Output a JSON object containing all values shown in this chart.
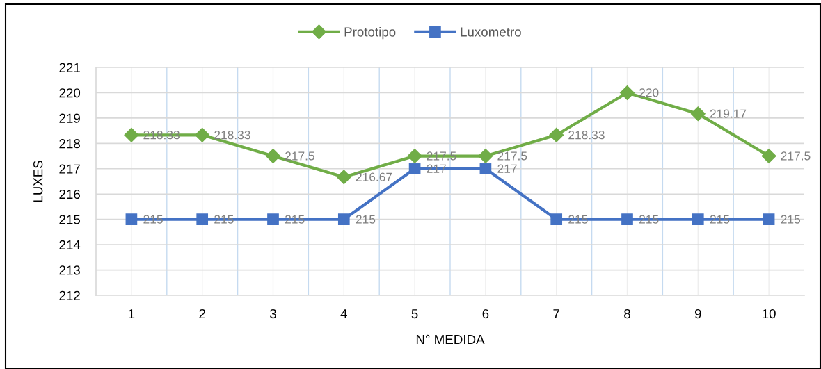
{
  "chart_data": {
    "type": "line",
    "xlabel": "N° MEDIDA",
    "ylabel": "LUXES",
    "categories": [
      "1",
      "2",
      "3",
      "4",
      "5",
      "6",
      "7",
      "8",
      "9",
      "10"
    ],
    "series": [
      {
        "name": "Prototipo",
        "color": "#70ad47",
        "marker": "diamond",
        "values": [
          218.33,
          218.33,
          217.5,
          216.67,
          217.5,
          217.5,
          218.33,
          220,
          219.17,
          217.5
        ]
      },
      {
        "name": "Luxometro",
        "color": "#4472c4",
        "marker": "square",
        "values": [
          215,
          215,
          215,
          215,
          217,
          217,
          215,
          215,
          215,
          215
        ]
      }
    ],
    "ylim": [
      212,
      221
    ],
    "yticks": [
      212,
      213,
      214,
      215,
      216,
      217,
      218,
      219,
      220,
      221
    ],
    "grid": true,
    "legend": "top",
    "data_labels": true,
    "line_style": "solid"
  }
}
